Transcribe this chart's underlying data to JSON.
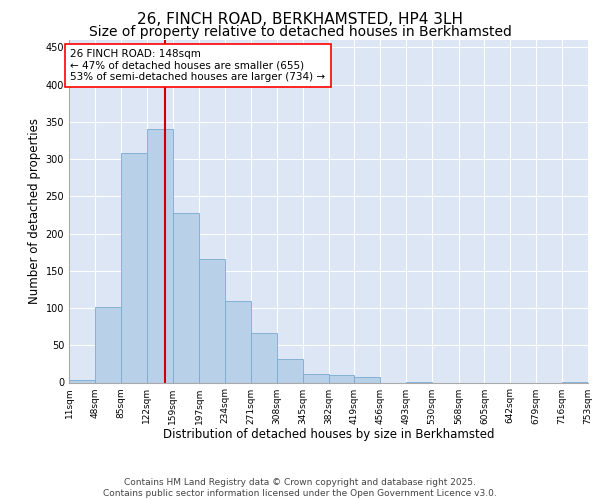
{
  "title_line1": "26, FINCH ROAD, BERKHAMSTED, HP4 3LH",
  "title_line2": "Size of property relative to detached houses in Berkhamsted",
  "xlabel": "Distribution of detached houses by size in Berkhamsted",
  "ylabel": "Number of detached properties",
  "bar_color": "#b8d0e8",
  "bar_edge_color": "#7aaad0",
  "background_color": "#dce6f5",
  "annotation_text": "26 FINCH ROAD: 148sqm\n← 47% of detached houses are smaller (655)\n53% of semi-detached houses are larger (734) →",
  "vline_x": 148,
  "vline_color": "#cc0000",
  "bin_edges": [
    11,
    48,
    85,
    122,
    159,
    197,
    234,
    271,
    308,
    345,
    382,
    419,
    456,
    493,
    530,
    568,
    605,
    642,
    679,
    716,
    753
  ],
  "bar_heights": [
    4,
    101,
    308,
    341,
    228,
    166,
    109,
    67,
    32,
    11,
    10,
    7,
    0,
    1,
    0,
    0,
    0,
    0,
    0,
    1
  ],
  "ylim": [
    0,
    460
  ],
  "yticks": [
    0,
    50,
    100,
    150,
    200,
    250,
    300,
    350,
    400,
    450
  ],
  "footer_text": "Contains HM Land Registry data © Crown copyright and database right 2025.\nContains public sector information licensed under the Open Government Licence v3.0.",
  "title_fontsize": 11,
  "subtitle_fontsize": 10,
  "axis_label_fontsize": 8.5,
  "tick_fontsize": 6.5,
  "annotation_fontsize": 7.5,
  "footer_fontsize": 6.5
}
